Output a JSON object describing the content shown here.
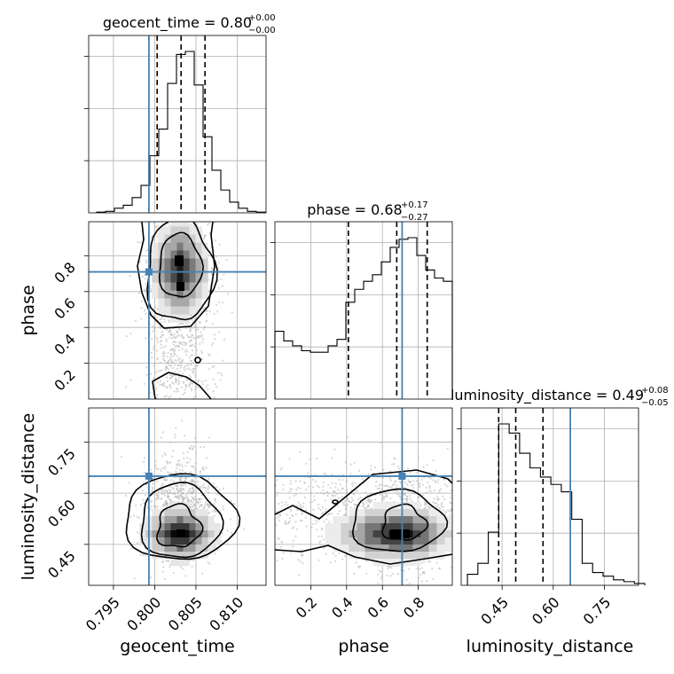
{
  "chart_data": {
    "type": "corner",
    "parameters": [
      "geocent_time",
      "phase",
      "luminosity_distance"
    ],
    "truths": [
      0.7993,
      0.71,
      0.65
    ],
    "ranges": [
      [
        0.792,
        0.8135
      ],
      [
        0.0,
        0.99
      ],
      [
        0.33,
        0.85
      ]
    ],
    "titles": [
      {
        "name": "geocent_time",
        "median": "0.80",
        "plus": "+0.00",
        "minus": "−0.00"
      },
      {
        "name": "phase",
        "median": "0.68",
        "plus": "+0.17",
        "minus": "−0.27"
      },
      {
        "name": "luminosity_distance",
        "median": "0.49",
        "plus": "+0.08",
        "minus": "−0.05"
      }
    ],
    "quantiles": [
      [
        0.8003,
        0.8032,
        0.8061
      ],
      [
        0.41,
        0.68,
        0.85
      ],
      [
        0.44,
        0.49,
        0.57
      ]
    ],
    "xticks": [
      [
        "0.795",
        "0.800",
        "0.805",
        "0.810"
      ],
      [
        "0.2",
        "0.4",
        "0.6",
        "0.8"
      ],
      [
        "0.45",
        "0.60",
        "0.75"
      ]
    ],
    "xtick_values": [
      [
        0.795,
        0.8,
        0.805,
        0.81
      ],
      [
        0.2,
        0.4,
        0.6,
        0.8
      ],
      [
        0.45,
        0.6,
        0.75
      ]
    ],
    "yticks": {
      "phase": [
        "0.2",
        "0.4",
        "0.6",
        "0.8"
      ],
      "luminosity_distance": [
        "0.45",
        "0.60",
        "0.75"
      ]
    },
    "histograms": [
      {
        "parameter": "geocent_time",
        "counts": [
          1,
          2,
          6,
          10,
          20,
          36,
          75,
          110,
          170,
          208,
          212,
          168,
          100,
          56,
          30,
          14,
          6,
          2,
          1
        ]
      },
      {
        "parameter": "phase",
        "counts": [
          0.42,
          0.36,
          0.33,
          0.3,
          0.29,
          0.29,
          0.33,
          0.37,
          0.6,
          0.68,
          0.73,
          0.77,
          0.85,
          0.94,
          0.99,
          1.0,
          0.89,
          0.8,
          0.75,
          0.73
        ]
      },
      {
        "parameter": "luminosity_distance",
        "counts": [
          0.06,
          0.12,
          0.29,
          0.88,
          0.83,
          0.72,
          0.64,
          0.59,
          0.55,
          0.51,
          0.36,
          0.12,
          0.07,
          0.05,
          0.03,
          0.02,
          0.01
        ]
      }
    ],
    "grid": true,
    "truth_color": "#4682b4"
  },
  "axis_labels": {
    "geocent_time": "geocent_time",
    "phase": "phase",
    "luminosity_distance": "luminosity_distance"
  },
  "colors": {
    "truth": "#4682b4",
    "hist": "#000000",
    "grid": "#b0b0b0",
    "points": "#b5b5b5"
  }
}
